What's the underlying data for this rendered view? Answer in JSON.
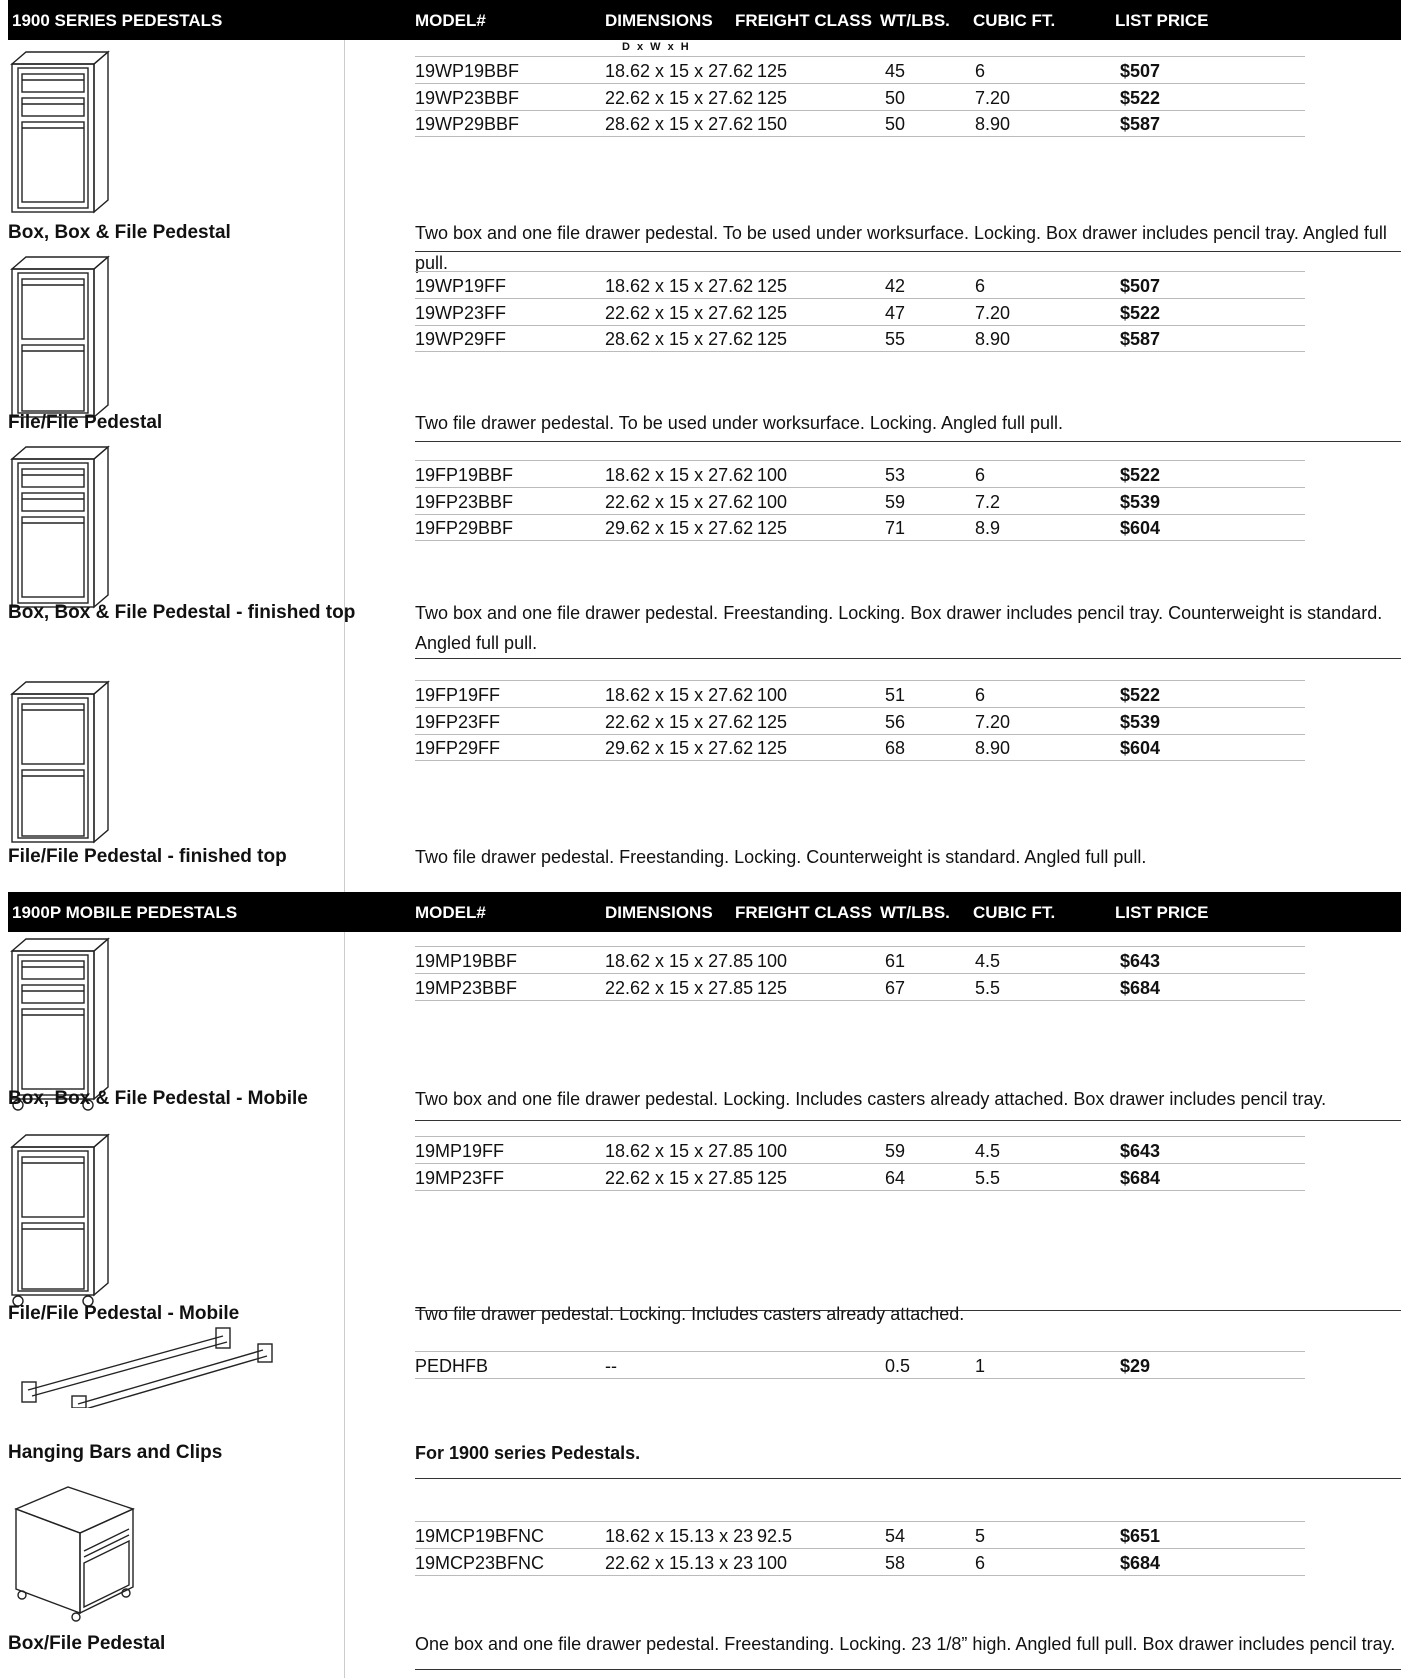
{
  "headers": [
    {
      "title": "1900 SERIES PEDESTALS",
      "cols": [
        "MODEL#",
        "DIMENSIONS",
        "FREIGHT CLASS",
        "WT/LBS.",
        "CUBIC FT.",
        "LIST PRICE"
      ]
    },
    {
      "title": "1900P MOBILE PEDESTALS",
      "cols": [
        "MODEL#",
        "DIMENSIONS",
        "FREIGHT CLASS",
        "WT/LBS.",
        "CUBIC FT.",
        "LIST PRICE"
      ]
    }
  ],
  "dims_sub": "D x W x H",
  "sections": [
    {
      "title": "Box, Box & File Pedestal",
      "icon": "box-box-file-pedestal-icon",
      "desc": "Two box and one file drawer pedestal. To be used under worksurface. Locking. Box drawer includes pencil tray. Angled full pull.",
      "rows": [
        [
          "19WP19BBF",
          "18.62 x 15 x 27.62",
          "125",
          "45",
          "6",
          "$507"
        ],
        [
          "19WP23BBF",
          "22.62 x 15 x 27.62",
          "125",
          "50",
          "7.20",
          "$522"
        ],
        [
          "19WP29BBF",
          "28.62 x 15 x 27.62",
          "150",
          "50",
          "8.90",
          "$587"
        ]
      ]
    },
    {
      "title": "File/File Pedestal",
      "icon": "file-file-pedestal-icon",
      "desc": "Two file drawer pedestal.  To be used under worksurface.  Locking.  Angled full pull.",
      "rows": [
        [
          "19WP19FF",
          "18.62 x 15 x 27.62",
          "125",
          "42",
          "6",
          "$507"
        ],
        [
          "19WP23FF",
          "22.62 x 15 x 27.62",
          "125",
          "47",
          "7.20",
          "$522"
        ],
        [
          "19WP29FF",
          "28.62 x 15 x 27.62",
          "125",
          "55",
          "8.90",
          "$587"
        ]
      ]
    },
    {
      "title": "Box, Box & File Pedestal - finished top",
      "icon": "box-box-file-pedestal-finished-top-icon",
      "desc": "Two box and one file drawer pedestal. Freestanding. Locking. Box drawer includes pencil tray. Counterweight is standard. Angled full pull.",
      "rows": [
        [
          "19FP19BBF",
          "18.62 x 15 x 27.62",
          "100",
          "53",
          "6",
          "$522"
        ],
        [
          "19FP23BBF",
          "22.62 x 15 x 27.62",
          "100",
          "59",
          "7.2",
          "$539"
        ],
        [
          "19FP29BBF",
          "29.62 x 15 x 27.62",
          "125",
          "71",
          "8.9",
          "$604"
        ]
      ]
    },
    {
      "title": "File/File Pedestal - finished top",
      "icon": "file-file-pedestal-finished-top-icon",
      "desc": "Two file drawer pedestal. Freestanding. Locking. Counterweight is standard. Angled full pull.",
      "rows": [
        [
          "19FP19FF",
          "18.62 x 15 x 27.62",
          "100",
          "51",
          "6",
          "$522"
        ],
        [
          "19FP23FF",
          "22.62 x 15 x 27.62",
          "125",
          "56",
          "7.20",
          "$539"
        ],
        [
          "19FP29FF",
          "29.62 x 15 x 27.62",
          "125",
          "68",
          "8.90",
          "$604"
        ]
      ]
    },
    {
      "title": "Box, Box & File Pedestal - Mobile",
      "icon": "box-box-file-pedestal-mobile-icon",
      "desc": "Two box and one file drawer pedestal.  Locking. Includes casters already attached. Box drawer includes pencil tray.",
      "rows": [
        [
          "19MP19BBF",
          "18.62 x 15 x 27.85",
          "100",
          "61",
          "4.5",
          "$643"
        ],
        [
          "19MP23BBF",
          "22.62 x 15 x 27.85",
          "125",
          "67",
          "5.5",
          "$684"
        ]
      ]
    },
    {
      "title": "File/File Pedestal - Mobile",
      "icon": "file-file-pedestal-mobile-icon",
      "desc": "Two file drawer pedestal.  Locking.  Includes casters already attached.",
      "rows": [
        [
          "19MP19FF",
          "18.62 x 15 x 27.85",
          "100",
          "59",
          "4.5",
          "$643"
        ],
        [
          "19MP23FF",
          "22.62 x 15 x 27.85",
          "125",
          "64",
          "5.5",
          "$684"
        ]
      ]
    },
    {
      "title": "Hanging Bars and Clips",
      "icon": "hanging-bars-icon",
      "desc": "For 1900 series Pedestals.",
      "rows": [
        [
          "PEDHFB",
          "--",
          "",
          "0.5",
          "1",
          "$29"
        ]
      ]
    },
    {
      "title": "Box/File Pedestal",
      "icon": "box-file-pedestal-icon",
      "desc": "One box and one file drawer pedestal. Freestanding. Locking. 23 1/8” high. Angled full pull. Box drawer includes pencil tray.",
      "rows": [
        [
          "19MCP19BFNC",
          "18.62 x 15.13 x 23",
          "92.5",
          "54",
          "5",
          "$651"
        ],
        [
          "19MCP23BFNC",
          "22.62 x 15.13 x 23",
          "100",
          "58",
          "6",
          "$684"
        ]
      ]
    }
  ]
}
